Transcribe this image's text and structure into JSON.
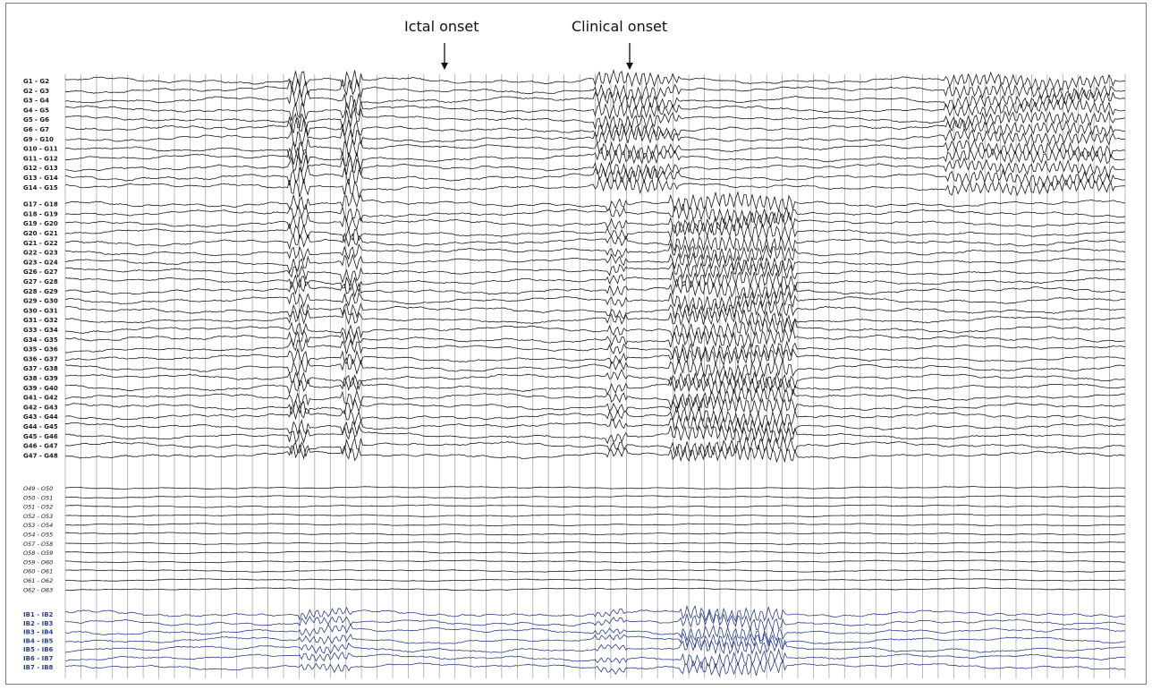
{
  "annotations": {
    "ictal_onset": "Ictal onset",
    "clinical_onset": "Clinical onset"
  },
  "colors": {
    "trace_black": "#1a1a1a",
    "trace_blue": "#2b3f8f",
    "gridline": "#a8a8a8",
    "frame": "#7a7a7a"
  },
  "chart_data": {
    "type": "line",
    "title": "",
    "grid": true,
    "time_gridlines": 69,
    "markers": [
      {
        "label": "Ictal onset",
        "position_fraction": 0.392
      },
      {
        "label": "Clinical onset",
        "position_fraction": 0.546
      }
    ],
    "series_groups": [
      {
        "group": "G",
        "color": "#1a1a1a",
        "channels": [
          "G1 - G2",
          "G2 - G3",
          "G3 - G4",
          "G4 - G5",
          "G5 - G6",
          "G6 - G7",
          "G9 - G10",
          "G10 - G11",
          "G11 - G12",
          "G12 - G13",
          "G13 - G14",
          "G14 - G15",
          "G17 - G18",
          "G18 - G19",
          "G19 - G20",
          "G20 - G21",
          "G21 - G22",
          "G22 - G23",
          "G23 - G24",
          "G26 - G27",
          "G27 - G28",
          "G28 - G29",
          "G29 - G30",
          "G30 - G31",
          "G31 - G32",
          "G33 - G34",
          "G34 - G35",
          "G35 - G36",
          "G36 - G37",
          "G37 - G38",
          "G38 - G39",
          "G39 - G40",
          "G41 - G42",
          "G42 - G43",
          "G43 - G44",
          "G44 - G45",
          "G45 - G46",
          "G46 - G47",
          "G47 - G48"
        ],
        "activity": [
          {
            "channel_index_range": [
              0,
              11
            ],
            "bursts": [
              [
                0.21,
                0.23,
                3
              ],
              [
                0.26,
                0.28,
                3
              ],
              [
                0.5,
                0.56,
                2.5
              ],
              [
                0.56,
                0.58,
                2
              ],
              [
                0.83,
                0.99,
                2.2
              ]
            ]
          },
          {
            "channel_index_range": [
              12,
              38
            ],
            "bursts": [
              [
                0.21,
                0.23,
                2.5
              ],
              [
                0.26,
                0.28,
                2.5
              ],
              [
                0.51,
                0.53,
                2
              ],
              [
                0.57,
                0.69,
                2.6
              ]
            ]
          }
        ]
      },
      {
        "group": "O",
        "color": "#1a1a1a",
        "channels": [
          "O49 - O50",
          "O50 - O51",
          "O51 - O52",
          "O52 - O53",
          "O53 - O54",
          "O54 - O55",
          "O57 - O58",
          "O58 - O59",
          "O59 - O60",
          "O60 - O61",
          "O61 - O62",
          "O62 - O63"
        ],
        "activity": [
          {
            "channel_index_range": [
              0,
              11
            ],
            "bursts": [
              [
                0.62,
                0.99,
                0.8
              ]
            ]
          }
        ]
      },
      {
        "group": "IB",
        "color": "#2b3f8f",
        "channels": [
          "IB1 - IB2",
          "IB2 - IB3",
          "IB3 - IB4",
          "IB4 - IB5",
          "IB5 - IB6",
          "IB6 - IB7",
          "IB7 - IB8"
        ],
        "activity": [
          {
            "channel_index_range": [
              0,
              6
            ],
            "bursts": [
              [
                0.22,
                0.27,
                1.8
              ],
              [
                0.5,
                0.53,
                1.6
              ],
              [
                0.58,
                0.68,
                2.4
              ]
            ]
          }
        ]
      }
    ]
  }
}
